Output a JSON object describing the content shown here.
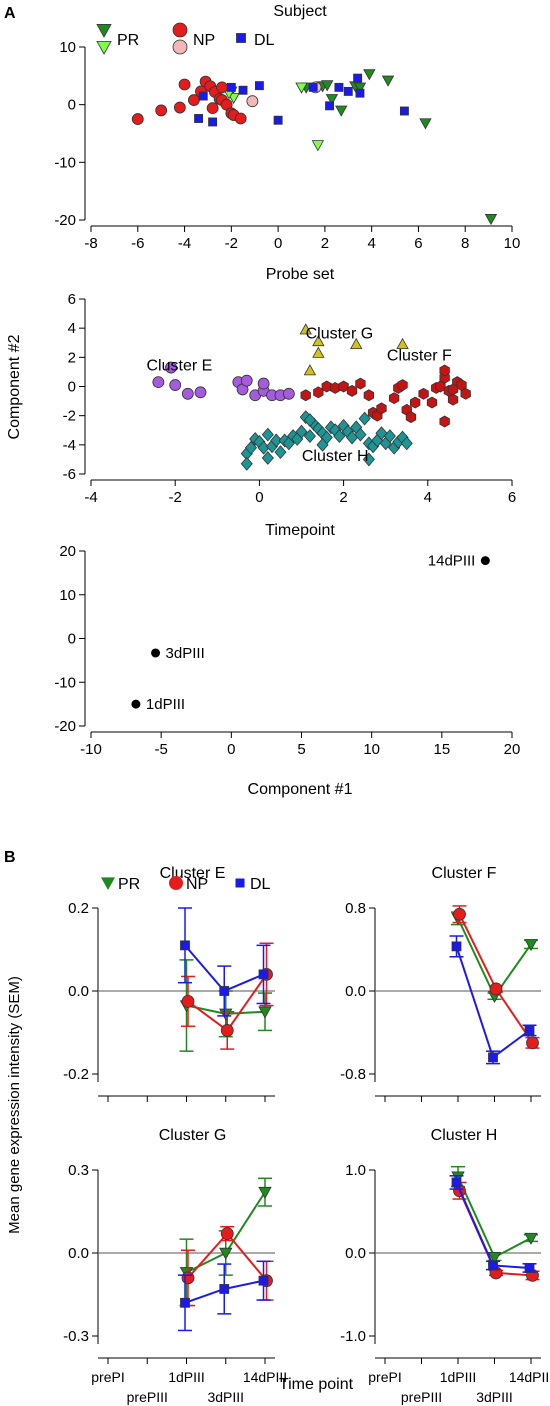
{
  "panel_labels": {
    "a": "A",
    "b": "B"
  },
  "shared": {
    "ylabel_b": "Mean gene expression intensity (SEM)",
    "xlabel_b": "Time point",
    "timepoints": [
      "prePI",
      "prePIII",
      "1dPIII",
      "3dPIII",
      "14dPIII"
    ]
  },
  "colors": {
    "PR": "#1f8a1f",
    "PR_light": "#7dff4a",
    "NP": "#e51c1c",
    "NP_light": "#f4b7b7",
    "DL": "#1a1aeb",
    "E": "#a45bdc",
    "F": "#c41414",
    "G": "#d2c21e",
    "H": "#1e9494"
  },
  "chart_data": [
    {
      "id": "A1",
      "type": "scatter",
      "title": "Subject",
      "xlabel": "Probe set",
      "ylabel": "",
      "xlim": [
        -8,
        10
      ],
      "ylim": [
        -20,
        10
      ],
      "xticks": [
        -8,
        -6,
        -4,
        -2,
        0,
        2,
        4,
        6,
        8,
        10
      ],
      "yticks": [
        -20,
        -10,
        0,
        10
      ],
      "legend": [
        "PR",
        "NP",
        "DL"
      ],
      "series": [
        {
          "name": "PR",
          "marker": "triangle-down",
          "color": "#1f8a1f",
          "points": [
            [
              1.2,
              3
            ],
            [
              1.9,
              3.2
            ],
            [
              2.1,
              3.4
            ],
            [
              2.3,
              1
            ],
            [
              2.7,
              -1
            ],
            [
              3.3,
              3.2
            ],
            [
              3.9,
              5.3
            ],
            [
              3.5,
              3
            ],
            [
              4.7,
              4.2
            ],
            [
              6.3,
              -3.2
            ],
            [
              9.1,
              -19.8
            ],
            [
              -2,
              2.3
            ]
          ]
        },
        {
          "name": "PR",
          "marker": "triangle-down",
          "color": "#7dff4a",
          "points": [
            [
              1,
              3
            ],
            [
              1.7,
              -7
            ],
            [
              -1.9,
              1.2
            ],
            [
              -2.1,
              2
            ]
          ]
        },
        {
          "name": "NP",
          "marker": "circle",
          "color": "#e51c1c",
          "points": [
            [
              -6,
              -2.5
            ],
            [
              -5,
              -1
            ],
            [
              -4.2,
              -0.5
            ],
            [
              -4,
              3.5
            ],
            [
              -3.6,
              0.8
            ],
            [
              -3.3,
              2.3
            ],
            [
              -3.1,
              4
            ],
            [
              -2.9,
              3.2
            ],
            [
              -2.8,
              -0.6
            ],
            [
              -2.7,
              2.2
            ],
            [
              -2.5,
              1
            ],
            [
              -2.4,
              0.8
            ],
            [
              -2.2,
              0
            ],
            [
              -2,
              -1.5
            ],
            [
              -1.9,
              -1.8
            ],
            [
              -1.6,
              -2.4
            ],
            [
              -2.4,
              3
            ]
          ]
        },
        {
          "name": "NP",
          "marker": "circle",
          "color": "#f4b7b7",
          "points": [
            [
              -1.1,
              0.6
            ],
            [
              1.6,
              3
            ]
          ]
        },
        {
          "name": "DL",
          "marker": "square",
          "color": "#1a1aeb",
          "points": [
            [
              -3.4,
              -2.4
            ],
            [
              -3.2,
              1.5
            ],
            [
              -2.8,
              -3
            ],
            [
              -2,
              3
            ],
            [
              0,
              -2.7
            ],
            [
              -0.8,
              3.3
            ],
            [
              1.5,
              3
            ],
            [
              2.6,
              3
            ],
            [
              3,
              2.3
            ],
            [
              3.4,
              4.6
            ],
            [
              3.5,
              2
            ],
            [
              5.4,
              -1.1
            ],
            [
              -1.5,
              2.5
            ],
            [
              2.2,
              -0.2
            ]
          ]
        }
      ]
    },
    {
      "id": "A2",
      "type": "scatter",
      "title": "",
      "xlabel": "Timepoint",
      "ylabel": "Component #2",
      "xlim": [
        -4,
        6
      ],
      "ylim": [
        -6,
        6
      ],
      "xticks": [
        -4,
        -2,
        0,
        2,
        4,
        6
      ],
      "yticks": [
        -6,
        -4,
        -2,
        0,
        2,
        4,
        6
      ],
      "annotations": [
        {
          "text": "Cluster E",
          "x": -1.9,
          "y": 1.1
        },
        {
          "text": "Cluster G",
          "x": 1.9,
          "y": 3.3
        },
        {
          "text": "Cluster F",
          "x": 3.8,
          "y": 1.8
        },
        {
          "text": "Cluster H",
          "x": 1.8,
          "y": -5.1
        }
      ],
      "series": [
        {
          "name": "Cluster E",
          "marker": "circle",
          "color": "#a45bdc",
          "points": [
            [
              -2.4,
              0.3
            ],
            [
              -2.1,
              1.3
            ],
            [
              -2,
              0.1
            ],
            [
              -1.7,
              -0.5
            ],
            [
              -1.4,
              -0.4
            ],
            [
              -0.5,
              0.3
            ],
            [
              -0.4,
              -0.2
            ],
            [
              -0.3,
              0.4
            ],
            [
              -0.1,
              -0.6
            ],
            [
              0.1,
              -0.3
            ],
            [
              0.3,
              -0.6
            ],
            [
              0.5,
              -0.6
            ],
            [
              0.7,
              -0.5
            ],
            [
              0.1,
              0.2
            ]
          ]
        },
        {
          "name": "Cluster G",
          "marker": "triangle-up",
          "color": "#d2c21e",
          "points": [
            [
              1.1,
              3.9
            ],
            [
              1.4,
              3.1
            ],
            [
              1.4,
              2.3
            ],
            [
              1.2,
              1.1
            ],
            [
              2.3,
              2.9
            ],
            [
              3.4,
              2.9
            ]
          ]
        },
        {
          "name": "Cluster F",
          "marker": "hexagon",
          "color": "#c41414",
          "points": [
            [
              1.1,
              -0.6
            ],
            [
              1.4,
              -0.4
            ],
            [
              1.6,
              0
            ],
            [
              1.8,
              -0.1
            ],
            [
              2,
              0
            ],
            [
              2.2,
              -0.3
            ],
            [
              2.4,
              0.2
            ],
            [
              2.6,
              -0.6
            ],
            [
              2.7,
              -1.8
            ],
            [
              2.8,
              -2
            ],
            [
              2.9,
              -1.5
            ],
            [
              3.2,
              -0.8
            ],
            [
              3.3,
              -0.1
            ],
            [
              3.4,
              0.1
            ],
            [
              3.5,
              -1.6
            ],
            [
              3.6,
              -2.1
            ],
            [
              3.7,
              -1.1
            ],
            [
              3.9,
              -0.5
            ],
            [
              4.1,
              -1.1
            ],
            [
              4.2,
              -0.1
            ],
            [
              4.3,
              0
            ],
            [
              4.4,
              0.6
            ],
            [
              4.4,
              1.1
            ],
            [
              4.5,
              -0.3
            ],
            [
              4.6,
              -0.9
            ],
            [
              4.7,
              0.3
            ],
            [
              4.8,
              0.1
            ],
            [
              4.9,
              -0.5
            ],
            [
              4.6,
              -0.2
            ],
            [
              4.4,
              -2.4
            ]
          ]
        },
        {
          "name": "Cluster H",
          "marker": "diamond",
          "color": "#1e9494",
          "points": [
            [
              -0.3,
              -4.6
            ],
            [
              -0.3,
              -5.3
            ],
            [
              -0.2,
              -4.2
            ],
            [
              -0.1,
              -3.6
            ],
            [
              0,
              -3.8
            ],
            [
              0.1,
              -4.2
            ],
            [
              0.2,
              -3.3
            ],
            [
              0.3,
              -4.1
            ],
            [
              0.4,
              -3.7
            ],
            [
              0.5,
              -4.5
            ],
            [
              0.6,
              -3.7
            ],
            [
              0.7,
              -3.9
            ],
            [
              0.8,
              -3.4
            ],
            [
              0.9,
              -3.6
            ],
            [
              1,
              -3.1
            ],
            [
              1.1,
              -2.1
            ],
            [
              1.2,
              -3.4
            ],
            [
              1.3,
              -2.6
            ],
            [
              1.4,
              -2.9
            ],
            [
              1.5,
              -3.2
            ],
            [
              1.6,
              -3.5
            ],
            [
              1.7,
              -2.8
            ],
            [
              1.8,
              -3
            ],
            [
              1.9,
              -3.4
            ],
            [
              2,
              -2.7
            ],
            [
              2.1,
              -3.1
            ],
            [
              2.2,
              -3.5
            ],
            [
              2.3,
              -2.8
            ],
            [
              2.4,
              -3.3
            ],
            [
              2.5,
              -2.2
            ],
            [
              2.6,
              -3.9
            ],
            [
              2.7,
              -4.1
            ],
            [
              2.8,
              -3.7
            ],
            [
              2.9,
              -3.2
            ],
            [
              3,
              -3.9
            ],
            [
              3.1,
              -3.4
            ],
            [
              3.2,
              -4.2
            ],
            [
              3.3,
              -3.8
            ],
            [
              3.4,
              -3.5
            ],
            [
              3.5,
              -3.9
            ],
            [
              2.6,
              -5
            ],
            [
              0.2,
              -4.9
            ],
            [
              1.5,
              -4
            ],
            [
              1.2,
              -2.3
            ]
          ]
        }
      ]
    },
    {
      "id": "A3",
      "type": "scatter",
      "title": "",
      "xlabel": "Component #1",
      "ylabel": "",
      "xlim": [
        -10,
        20
      ],
      "ylim": [
        -20,
        20
      ],
      "xticks": [
        -10,
        -5,
        0,
        5,
        10,
        15,
        20
      ],
      "yticks": [
        -20,
        -10,
        0,
        10,
        20
      ],
      "points": [
        {
          "label": "14dPIII",
          "x": 18.1,
          "y": 17.8
        },
        {
          "label": "3dPIII",
          "x": -5.4,
          "y": -3.3
        },
        {
          "label": "1dPIII",
          "x": -6.8,
          "y": -15
        }
      ]
    },
    {
      "id": "B_E",
      "type": "line",
      "title": "Cluster E",
      "ylim": [
        -0.2,
        0.2
      ],
      "yticks": [
        -0.2,
        0.0,
        0.2
      ],
      "yticklabels": [
        "-0.2",
        "0.0",
        "0.2"
      ],
      "categories": [
        "prePI",
        "prePIII",
        "1dPIII",
        "3dPIII",
        "14dPIII"
      ],
      "legend": [
        "PR",
        "NP",
        "DL"
      ],
      "series": [
        {
          "name": "PR",
          "values": [
            null,
            null,
            -0.035,
            -0.055,
            -0.05
          ],
          "err": [
            null,
            null,
            0.11,
            0.055,
            0.045
          ]
        },
        {
          "name": "NP",
          "values": [
            null,
            null,
            -0.025,
            -0.095,
            0.04
          ],
          "err": [
            null,
            null,
            0.06,
            0.045,
            0.075
          ]
        },
        {
          "name": "DL",
          "values": [
            null,
            null,
            0.11,
            0.0,
            0.04
          ],
          "err": [
            null,
            null,
            0.09,
            0.06,
            0.07
          ]
        }
      ]
    },
    {
      "id": "B_F",
      "type": "line",
      "title": "Cluster F",
      "ylim": [
        -0.8,
        0.8
      ],
      "yticks": [
        -0.8,
        0.0,
        0.8
      ],
      "yticklabels": [
        "-0.8",
        "0.0",
        "0.8"
      ],
      "categories": [
        "prePI",
        "prePIII",
        "1dPIII",
        "3dPIII",
        "14dPIII"
      ],
      "series": [
        {
          "name": "PR",
          "values": [
            null,
            null,
            0.7,
            -0.05,
            0.45
          ],
          "err": [
            null,
            null,
            0.06,
            0.03,
            0.04
          ]
        },
        {
          "name": "NP",
          "values": [
            null,
            null,
            0.74,
            0.02,
            -0.5
          ],
          "err": [
            null,
            null,
            0.08,
            0.03,
            0.05
          ]
        },
        {
          "name": "DL",
          "values": [
            null,
            null,
            0.43,
            -0.64,
            -0.38
          ],
          "err": [
            null,
            null,
            0.1,
            0.06,
            0.05
          ]
        }
      ]
    },
    {
      "id": "B_G",
      "type": "line",
      "title": "Cluster G",
      "ylim": [
        -0.3,
        0.3
      ],
      "yticks": [
        -0.3,
        0.0,
        0.3
      ],
      "yticklabels": [
        "-0.3",
        "0.0",
        "0.3"
      ],
      "categories": [
        "prePI",
        "prePIII",
        "1dPIII",
        "3dPIII",
        "14dPIII"
      ],
      "series": [
        {
          "name": "PR",
          "values": [
            null,
            null,
            -0.07,
            0.0,
            0.22
          ],
          "err": [
            null,
            null,
            0.12,
            0.08,
            0.05
          ]
        },
        {
          "name": "NP",
          "values": [
            null,
            null,
            -0.09,
            0.07,
            -0.1
          ],
          "err": [
            null,
            null,
            0.1,
            0.025,
            0.07
          ]
        },
        {
          "name": "DL",
          "values": [
            null,
            null,
            -0.18,
            -0.13,
            -0.1
          ],
          "err": [
            null,
            null,
            0.1,
            0.09,
            0.07
          ]
        }
      ]
    },
    {
      "id": "B_H",
      "type": "line",
      "title": "Cluster H",
      "ylim": [
        -1.0,
        1.0
      ],
      "yticks": [
        -1.0,
        0.0,
        1.0
      ],
      "yticklabels": [
        "-1.0",
        "0.0",
        "1.0"
      ],
      "categories": [
        "prePI",
        "prePIII",
        "1dPIII",
        "3dPIII",
        "14dPIII"
      ],
      "series": [
        {
          "name": "PR",
          "values": [
            null,
            null,
            0.92,
            -0.05,
            0.18
          ],
          "err": [
            null,
            null,
            0.12,
            0.04,
            0.04
          ]
        },
        {
          "name": "NP",
          "values": [
            null,
            null,
            0.75,
            -0.24,
            -0.27
          ],
          "err": [
            null,
            null,
            0.1,
            0.03,
            0.05
          ]
        },
        {
          "name": "DL",
          "values": [
            null,
            null,
            0.85,
            -0.15,
            -0.18
          ],
          "err": [
            null,
            null,
            0.08,
            0.05,
            0.05
          ]
        }
      ]
    }
  ]
}
